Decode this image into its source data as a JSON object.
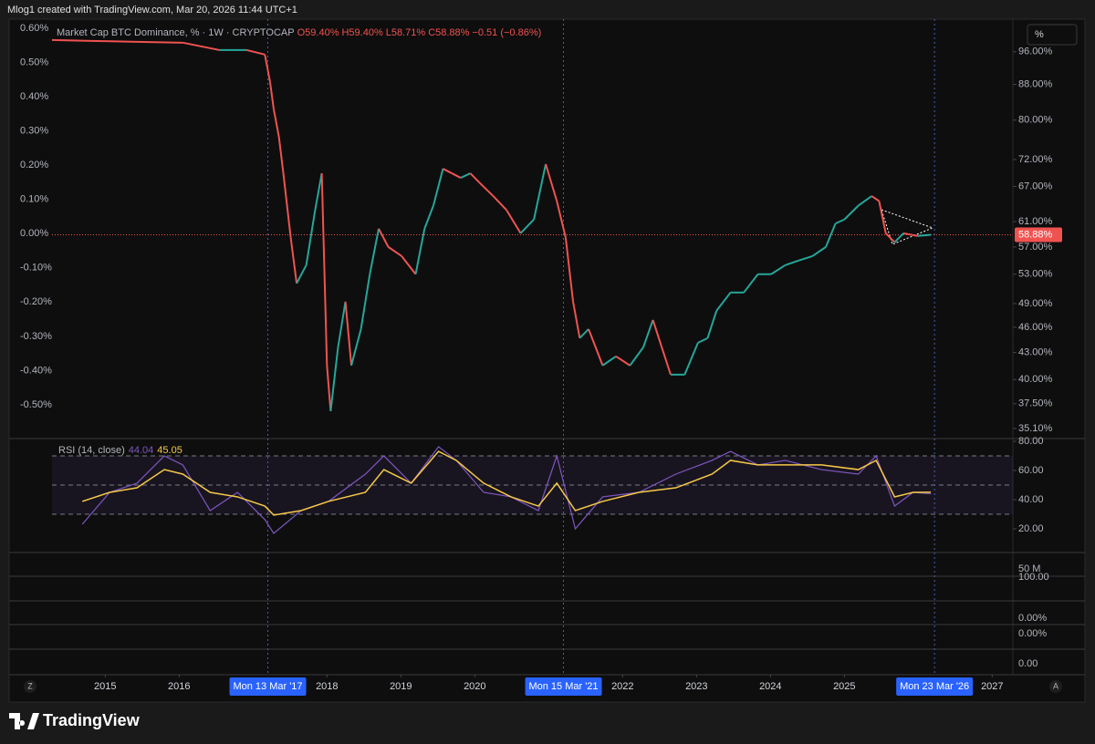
{
  "topbar": {
    "text": "Mlog1 created with TradingView.com, Mar 20, 2026 11:44 UTC+1"
  },
  "buttons": {
    "percent": "%",
    "zoom": "Z",
    "auto": "A"
  },
  "chart_data": [
    {
      "type": "line",
      "title": "Market Cap BTC Dominance, % · 1W · CRYPTOCAP",
      "annotations": [
        "O59.40%",
        "H59.40%",
        "L58.71%",
        "C58.88%",
        "−0.51 (−0.86%)"
      ],
      "x": [
        2014.28,
        2014.81,
        2015.43,
        2016.05,
        2016.54,
        2016.91,
        2017.16,
        2017.23,
        2017.28,
        2017.35,
        2017.41,
        2017.51,
        2017.59,
        2017.72,
        2017.84,
        2017.93,
        2018.0,
        2018.05,
        2018.15,
        2018.25,
        2018.33,
        2018.46,
        2018.58,
        2018.7,
        2018.83,
        2019.01,
        2019.2,
        2019.32,
        2019.44,
        2019.57,
        2019.69,
        2019.81,
        2019.94,
        2020.06,
        2020.25,
        2020.43,
        2020.62,
        2020.8,
        2020.96,
        2021.11,
        2021.23,
        2021.33,
        2021.42,
        2021.54,
        2021.73,
        2021.91,
        2022.1,
        2022.28,
        2022.41,
        2022.53,
        2022.65,
        2022.84,
        2023.02,
        2023.15,
        2023.27,
        2023.46,
        2023.64,
        2023.83,
        2024.01,
        2024.2,
        2024.38,
        2024.57,
        2024.75,
        2024.88,
        2025.0,
        2025.19,
        2025.37,
        2025.47,
        2025.56,
        2025.68,
        2025.8,
        2025.99,
        2026.17
      ],
      "series": [
        {
          "colors": {
            "up": "#26a69a",
            "down": "#ef5350"
          },
          "values": [
            99.09,
            98.85,
            98.61,
            98.37,
            96.47,
            96.47,
            95.3,
            88.58,
            82.33,
            76.51,
            69.4,
            58.42,
            51.72,
            54.3,
            62.89,
            69.4,
            41.53,
            36.76,
            43.6,
            49.25,
            41.53,
            45.77,
            53.0,
            59.85,
            57.0,
            55.63,
            53.0,
            59.85,
            63.66,
            70.25,
            69.4,
            68.56,
            69.4,
            67.73,
            65.3,
            62.89,
            59.13,
            61.34,
            71.12,
            64.44,
            58.42,
            49.25,
            44.68,
            45.77,
            41.53,
            42.56,
            41.53,
            43.6,
            46.9,
            43.6,
            40.53,
            40.53,
            44.14,
            44.68,
            48.06,
            50.47,
            50.47,
            53.0,
            53.0,
            54.3,
            54.96,
            55.63,
            57.0,
            60.69,
            61.34,
            63.66,
            65.3,
            64.44,
            59.13,
            57.72,
            59.13,
            58.7,
            58.88
          ]
        }
      ],
      "log_scale": true,
      "ylim": [
        34.25,
        104.5
      ],
      "yticks": [
        {
          "value": 96,
          "label": "96.00%"
        },
        {
          "value": 88,
          "label": "88.00%"
        },
        {
          "value": 80,
          "label": "80.00%"
        },
        {
          "value": 72,
          "label": "72.00%"
        },
        {
          "value": 67,
          "label": "67.00%"
        },
        {
          "value": 61,
          "label": "61.00%"
        },
        {
          "value": 57,
          "label": "57.00%"
        },
        {
          "value": 53,
          "label": "53.00%"
        },
        {
          "value": 49,
          "label": "49.00%"
        },
        {
          "value": 46,
          "label": "46.00%"
        },
        {
          "value": 43,
          "label": "43.00%"
        },
        {
          "value": 40,
          "label": "40.00%"
        },
        {
          "value": 37.5,
          "label": "37.50%"
        },
        {
          "value": 35.1,
          "label": "35.10%"
        }
      ],
      "y2lim": [
        -0.596,
        0.624
      ],
      "y2ticks": [
        {
          "value": 0.6,
          "label": "0.60%"
        },
        {
          "value": 0.5,
          "label": "0.50%"
        },
        {
          "value": 0.4,
          "label": "0.40%"
        },
        {
          "value": 0.3,
          "label": "0.30%"
        },
        {
          "value": 0.2,
          "label": "0.20%"
        },
        {
          "value": 0.1,
          "label": "0.10%"
        },
        {
          "value": 0,
          "label": "0.00%"
        },
        {
          "value": -0.1,
          "label": "-0.10%"
        },
        {
          "value": -0.2,
          "label": "-0.20%"
        },
        {
          "value": -0.3,
          "label": "-0.30%"
        },
        {
          "value": -0.4,
          "label": "-0.40%"
        },
        {
          "value": -0.5,
          "label": "-0.50%"
        }
      ],
      "last_price": {
        "value": 58.88,
        "label": "58.88%"
      },
      "xlim": [
        2013.7,
        2027.28
      ],
      "xticks": [
        2015,
        2016,
        2018,
        2019,
        2020,
        2022,
        2023,
        2024,
        2025,
        2027
      ],
      "markers": [
        {
          "value": 2017.2,
          "label": "Mon 13 Mar '17"
        },
        {
          "value": 2021.2,
          "label": "Mon 15 Mar '21"
        },
        {
          "value": 2026.22,
          "label": "Mon 23 Mar '26"
        }
      ]
    },
    {
      "type": "line",
      "title": "RSI (14, close)",
      "x": [
        2014.69,
        2015.06,
        2015.43,
        2015.8,
        2016.05,
        2016.42,
        2016.79,
        2017.16,
        2017.28,
        2017.65,
        2018.02,
        2018.52,
        2018.77,
        2019.14,
        2019.51,
        2019.75,
        2020.12,
        2020.49,
        2020.86,
        2021.11,
        2021.36,
        2021.73,
        2022.22,
        2022.72,
        2023.21,
        2023.46,
        2023.83,
        2024.2,
        2024.69,
        2025.19,
        2025.43,
        2025.68,
        2025.93,
        2026.17
      ],
      "series": [
        {
          "color": "#7e57c2",
          "values": [
            23.1,
            45,
            51.3,
            70,
            63.8,
            32.5,
            45,
            26.3,
            16.9,
            32.5,
            38.8,
            57.5,
            70,
            51.3,
            76.3,
            66.9,
            45,
            41.9,
            32.5,
            70,
            20,
            41.9,
            45,
            57.5,
            66.9,
            73.1,
            63.8,
            66.9,
            60.6,
            57.5,
            70,
            35.6,
            45,
            44.04
          ]
        },
        {
          "color": "#f7c948",
          "values": [
            38.8,
            45,
            48.1,
            60.6,
            57.5,
            45,
            41.9,
            35.6,
            29.4,
            32.5,
            38.8,
            45,
            60.6,
            51.3,
            73.1,
            66.9,
            51.3,
            41.9,
            35.6,
            51.3,
            32.5,
            38.8,
            45,
            48.1,
            57.5,
            66.9,
            63.8,
            63.8,
            63.8,
            60.6,
            66.9,
            41.9,
            45,
            45.05
          ]
        }
      ],
      "ylim": [
        4.375,
        81.25
      ],
      "yticks": [
        {
          "value": 80,
          "label": "80.00"
        },
        {
          "value": 60,
          "label": "60.00"
        },
        {
          "value": 40,
          "label": "40.00"
        },
        {
          "value": 20,
          "label": "20.00"
        }
      ],
      "bands": [
        70,
        50,
        30
      ],
      "band_color": "#7e57c2"
    }
  ],
  "lower_panes": {
    "labels": [
      "50 M",
      "100.00",
      "0.00%",
      "0.00%",
      "0.00"
    ]
  },
  "footer": {
    "brand": "TradingView"
  }
}
